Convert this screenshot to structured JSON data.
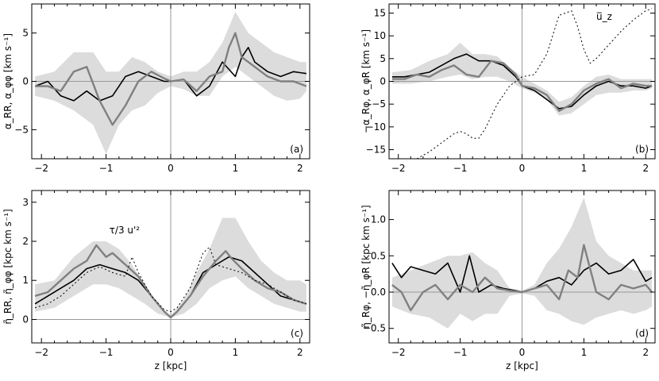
{
  "chart_data": [
    {
      "type": "line",
      "panel": "(a)",
      "ylabel": "α_RR, α_φφ [km s⁻¹]",
      "xlabel": "",
      "xlim": [
        -2.15,
        2.15
      ],
      "ylim": [
        -8,
        8
      ],
      "xticks": [
        -2,
        -1,
        0,
        1,
        2
      ],
      "yticks": [
        -5,
        0,
        5
      ],
      "yticks_labels": [
        "−5",
        "0",
        "5"
      ],
      "grid": false,
      "annotations": [],
      "band": {
        "x": [
          -2.1,
          -1.8,
          -1.5,
          -1.2,
          -1.0,
          -0.8,
          -0.6,
          -0.4,
          -0.2,
          0.0,
          0.2,
          0.4,
          0.6,
          0.8,
          1.0,
          1.2,
          1.4,
          1.6,
          1.8,
          2.0,
          2.1
        ],
        "lower": [
          -1.5,
          -2.0,
          -3.0,
          -4.5,
          -7.5,
          -4.5,
          -3.0,
          -2.5,
          -1.2,
          -0.5,
          -0.8,
          -1.5,
          -1.5,
          0.5,
          1.5,
          0.5,
          -0.5,
          -1.5,
          -2.0,
          -1.8,
          -1.0
        ],
        "upper": [
          0.5,
          1.0,
          3.0,
          3.0,
          1.0,
          1.0,
          2.5,
          2.0,
          1.0,
          0.5,
          1.0,
          1.0,
          2.0,
          4.0,
          7.2,
          5.0,
          4.0,
          3.0,
          2.5,
          2.0,
          2.0
        ]
      },
      "series": [
        {
          "name": "α_RR",
          "color": "#000000",
          "x": [
            -2.1,
            -1.9,
            -1.7,
            -1.5,
            -1.3,
            -1.1,
            -0.9,
            -0.7,
            -0.5,
            -0.3,
            -0.1,
            0.0,
            0.2,
            0.4,
            0.6,
            0.8,
            1.0,
            1.1,
            1.2,
            1.3,
            1.5,
            1.7,
            1.9,
            2.1
          ],
          "y": [
            -0.5,
            0.0,
            -1.5,
            -2.0,
            -1.0,
            -2.0,
            -1.5,
            0.5,
            1.0,
            0.5,
            0.0,
            0.0,
            0.2,
            -1.5,
            -0.5,
            2.0,
            0.5,
            2.5,
            3.5,
            2.0,
            1.0,
            0.5,
            1.0,
            0.8
          ]
        },
        {
          "name": "α_φφ",
          "color": "#808080",
          "x": [
            -2.1,
            -1.9,
            -1.7,
            -1.5,
            -1.3,
            -1.1,
            -0.9,
            -0.7,
            -0.5,
            -0.3,
            -0.1,
            0.0,
            0.2,
            0.4,
            0.6,
            0.8,
            0.9,
            1.0,
            1.1,
            1.3,
            1.5,
            1.7,
            1.9,
            2.1
          ],
          "y": [
            -0.5,
            -0.5,
            -1.0,
            1.0,
            1.5,
            -2.0,
            -4.5,
            -2.5,
            0.0,
            1.0,
            0.3,
            0.0,
            0.2,
            -1.0,
            0.5,
            1.0,
            3.5,
            5.0,
            2.5,
            1.5,
            0.5,
            0.0,
            0.0,
            -0.5
          ]
        }
      ]
    },
    {
      "type": "line",
      "panel": "(b)",
      "ylabel": "−α_Rφ, α_φR [km s⁻¹]",
      "xlabel": "",
      "xlim": [
        -2.15,
        2.15
      ],
      "ylim": [
        -17,
        17
      ],
      "xticks": [
        -2,
        -1,
        0,
        1,
        2
      ],
      "yticks": [
        -15,
        -10,
        -5,
        0,
        5,
        10,
        15
      ],
      "yticks_labels": [
        "−15",
        "−10",
        "−5",
        "0",
        "5",
        "10",
        "15"
      ],
      "grid": false,
      "annotations": [
        "u̅_z"
      ],
      "band": {
        "x": [
          -2.1,
          -1.8,
          -1.5,
          -1.2,
          -1.0,
          -0.8,
          -0.6,
          -0.4,
          -0.2,
          0.0,
          0.2,
          0.4,
          0.6,
          0.8,
          1.0,
          1.2,
          1.4,
          1.6,
          1.8,
          2.0,
          2.1
        ],
        "lower": [
          -0.5,
          -0.5,
          0.0,
          1.0,
          1.5,
          0.5,
          1.0,
          1.0,
          0.0,
          -1.5,
          -2.5,
          -4.0,
          -7.5,
          -7.0,
          -5.0,
          -3.0,
          -2.5,
          -2.5,
          -2.0,
          -2.0,
          -1.5
        ],
        "upper": [
          2.0,
          2.5,
          4.5,
          6.0,
          8.5,
          6.0,
          6.0,
          5.5,
          3.0,
          1.0,
          -0.5,
          -2.0,
          -4.5,
          -3.5,
          -1.0,
          1.0,
          1.5,
          0.5,
          0.5,
          0.5,
          0.5
        ]
      },
      "series": [
        {
          "name": "−α_Rφ",
          "color": "#000000",
          "x": [
            -2.1,
            -1.9,
            -1.7,
            -1.5,
            -1.3,
            -1.1,
            -0.9,
            -0.7,
            -0.5,
            -0.3,
            -0.1,
            0.0,
            0.2,
            0.4,
            0.6,
            0.8,
            1.0,
            1.2,
            1.4,
            1.6,
            1.8,
            2.0,
            2.1
          ],
          "y": [
            1.0,
            1.0,
            1.5,
            2.0,
            3.5,
            5.0,
            6.0,
            4.5,
            4.5,
            3.5,
            1.0,
            -1.0,
            -2.0,
            -4.0,
            -6.0,
            -5.5,
            -3.0,
            -1.0,
            0.0,
            -1.0,
            -1.0,
            -1.5,
            -1.0
          ]
        },
        {
          "name": "α_φR",
          "color": "#808080",
          "x": [
            -2.1,
            -1.9,
            -1.7,
            -1.5,
            -1.3,
            -1.1,
            -0.9,
            -0.7,
            -0.5,
            -0.3,
            -0.1,
            0.0,
            0.2,
            0.4,
            0.6,
            0.8,
            1.0,
            1.2,
            1.4,
            1.6,
            1.8,
            2.0,
            2.1
          ],
          "y": [
            0.5,
            0.5,
            1.5,
            1.0,
            2.5,
            3.5,
            1.5,
            1.0,
            4.5,
            4.0,
            1.5,
            -1.0,
            -1.5,
            -3.0,
            -6.5,
            -5.0,
            -2.0,
            -0.5,
            0.5,
            -1.5,
            -0.5,
            -1.0,
            -1.0
          ]
        },
        {
          "name": "u̅_z",
          "color": "#000000",
          "dashed": true,
          "x": [
            -1.7,
            -1.5,
            -1.3,
            -1.1,
            -1.0,
            -0.9,
            -0.8,
            -0.7,
            -0.6,
            -0.4,
            -0.2,
            0.0,
            0.2,
            0.4,
            0.6,
            0.8,
            0.9,
            1.0,
            1.1,
            1.2,
            1.4,
            1.6,
            1.8,
            2.0,
            2.1
          ],
          "y": [
            -17.0,
            -15.5,
            -13.5,
            -11.5,
            -11.0,
            -11.5,
            -12.5,
            -12.5,
            -10.5,
            -5.0,
            -1.0,
            1.0,
            1.5,
            6.0,
            14.5,
            15.5,
            12.0,
            7.0,
            4.0,
            5.0,
            8.0,
            11.0,
            13.5,
            15.5,
            16.0
          ]
        }
      ]
    },
    {
      "type": "line",
      "panel": "(c)",
      "ylabel": "η̃_RR, η̃_φφ [kpc km s⁻¹]",
      "xlabel": "z [kpc]",
      "xlim": [
        -2.15,
        2.15
      ],
      "ylim": [
        -0.6,
        3.3
      ],
      "xticks": [
        -2,
        -1,
        0,
        1,
        2
      ],
      "yticks": [
        0,
        1,
        2,
        3
      ],
      "yticks_labels": [
        "0",
        "1",
        "2",
        "3"
      ],
      "grid": false,
      "annotations": [
        "τ/3 u'²"
      ],
      "band": {
        "x": [
          -2.1,
          -1.8,
          -1.5,
          -1.2,
          -1.0,
          -0.8,
          -0.6,
          -0.4,
          -0.2,
          0.0,
          0.2,
          0.4,
          0.6,
          0.8,
          1.0,
          1.2,
          1.4,
          1.6,
          1.8,
          2.0,
          2.1
        ],
        "lower": [
          0.2,
          0.3,
          0.6,
          0.9,
          0.9,
          0.8,
          0.6,
          0.4,
          0.15,
          0.05,
          0.15,
          0.4,
          0.8,
          1.0,
          1.1,
          0.8,
          0.6,
          0.4,
          0.3,
          0.2,
          0.2
        ],
        "upper": [
          0.9,
          1.0,
          1.6,
          2.0,
          2.0,
          1.8,
          1.4,
          0.9,
          0.4,
          0.1,
          0.5,
          1.2,
          1.8,
          2.6,
          2.6,
          2.0,
          1.5,
          1.2,
          1.0,
          1.0,
          0.9
        ]
      },
      "series": [
        {
          "name": "η̃_RR",
          "color": "#000000",
          "x": [
            -2.1,
            -1.9,
            -1.7,
            -1.5,
            -1.3,
            -1.1,
            -0.9,
            -0.7,
            -0.5,
            -0.3,
            -0.1,
            0.0,
            0.1,
            0.3,
            0.5,
            0.7,
            0.9,
            1.1,
            1.3,
            1.5,
            1.7,
            1.9,
            2.1
          ],
          "y": [
            0.4,
            0.6,
            0.8,
            1.0,
            1.3,
            1.4,
            1.3,
            1.2,
            1.0,
            0.6,
            0.2,
            0.05,
            0.2,
            0.6,
            1.2,
            1.4,
            1.6,
            1.5,
            1.2,
            0.9,
            0.6,
            0.5,
            0.4
          ]
        },
        {
          "name": "η̃_φφ",
          "color": "#808080",
          "x": [
            -2.1,
            -1.9,
            -1.7,
            -1.5,
            -1.3,
            -1.15,
            -1.0,
            -0.9,
            -0.7,
            -0.5,
            -0.3,
            -0.1,
            0.0,
            0.1,
            0.3,
            0.5,
            0.7,
            0.85,
            0.95,
            1.1,
            1.3,
            1.5,
            1.7,
            1.9,
            2.1
          ],
          "y": [
            0.6,
            0.7,
            1.0,
            1.3,
            1.5,
            1.9,
            1.6,
            1.7,
            1.4,
            1.1,
            0.6,
            0.2,
            0.05,
            0.2,
            0.6,
            1.1,
            1.5,
            1.75,
            1.55,
            1.3,
            1.0,
            0.8,
            0.7,
            0.5,
            0.4
          ]
        },
        {
          "name": "τ/3 u'²",
          "color": "#000000",
          "dashed": true,
          "x": [
            -2.1,
            -1.9,
            -1.7,
            -1.5,
            -1.3,
            -1.1,
            -0.9,
            -0.7,
            -0.6,
            -0.5,
            -0.3,
            -0.1,
            0.0,
            0.1,
            0.3,
            0.5,
            0.6,
            0.7,
            0.9,
            1.1,
            1.3,
            1.5,
            1.7,
            1.9,
            2.1
          ],
          "y": [
            0.3,
            0.4,
            0.6,
            0.9,
            1.2,
            1.35,
            1.2,
            1.1,
            1.6,
            1.2,
            0.6,
            0.25,
            0.2,
            0.3,
            0.8,
            1.7,
            1.85,
            1.4,
            1.3,
            1.2,
            1.0,
            0.9,
            0.7,
            0.5,
            0.4
          ]
        }
      ]
    },
    {
      "type": "line",
      "panel": "(d)",
      "ylabel": "η̃_Rφ, −η̃_φR [kpc km s⁻¹]",
      "xlabel": "z [kpc]",
      "xlim": [
        -2.15,
        2.15
      ],
      "ylim": [
        -0.7,
        1.4
      ],
      "xticks": [
        -2,
        -1,
        0,
        1,
        2
      ],
      "yticks": [
        -0.5,
        0.0,
        0.5,
        1.0
      ],
      "yticks_labels": [
        "−0.5",
        "0.0",
        "0.5",
        "1.0"
      ],
      "grid": false,
      "annotations": [],
      "band": {
        "x": [
          -2.1,
          -1.8,
          -1.5,
          -1.2,
          -1.0,
          -0.8,
          -0.6,
          -0.4,
          -0.2,
          0.0,
          0.2,
          0.4,
          0.6,
          0.8,
          1.0,
          1.2,
          1.4,
          1.6,
          1.8,
          2.0,
          2.1
        ],
        "lower": [
          -0.2,
          -0.3,
          -0.35,
          -0.5,
          -0.3,
          -0.4,
          -0.3,
          -0.3,
          -0.05,
          -0.02,
          -0.05,
          -0.25,
          -0.3,
          -0.4,
          -0.45,
          -0.35,
          -0.3,
          -0.25,
          -0.3,
          -0.25,
          -0.2
        ],
        "upper": [
          0.2,
          0.3,
          0.4,
          0.5,
          0.5,
          0.55,
          0.4,
          0.3,
          0.05,
          0.02,
          0.1,
          0.4,
          0.6,
          0.9,
          1.3,
          0.7,
          0.5,
          0.4,
          0.3,
          0.3,
          0.3
        ]
      },
      "series": [
        {
          "name": "η̃_Rφ",
          "color": "#000000",
          "x": [
            -2.1,
            -1.95,
            -1.8,
            -1.6,
            -1.4,
            -1.2,
            -1.0,
            -0.85,
            -0.7,
            -0.5,
            -0.3,
            -0.1,
            0.0,
            0.2,
            0.4,
            0.6,
            0.8,
            1.0,
            1.2,
            1.4,
            1.6,
            1.8,
            2.0,
            2.1
          ],
          "y": [
            0.4,
            0.2,
            0.35,
            0.3,
            0.25,
            0.4,
            0.0,
            0.5,
            0.0,
            0.1,
            0.05,
            0.02,
            0.0,
            0.05,
            0.15,
            0.2,
            0.1,
            0.3,
            0.4,
            0.25,
            0.3,
            0.45,
            0.15,
            0.2
          ]
        },
        {
          "name": "−η̃_φR",
          "color": "#808080",
          "x": [
            -2.1,
            -1.95,
            -1.8,
            -1.6,
            -1.4,
            -1.2,
            -1.0,
            -0.8,
            -0.6,
            -0.4,
            -0.2,
            0.0,
            0.2,
            0.4,
            0.6,
            0.75,
            0.9,
            1.0,
            1.2,
            1.4,
            1.6,
            1.8,
            2.0,
            2.1
          ],
          "y": [
            0.1,
            0.0,
            -0.25,
            0.0,
            0.1,
            -0.1,
            0.1,
            0.0,
            0.2,
            0.05,
            0.02,
            0.0,
            0.05,
            0.1,
            -0.1,
            0.3,
            0.2,
            0.65,
            0.0,
            -0.1,
            0.1,
            0.05,
            0.1,
            0.0
          ]
        }
      ]
    }
  ],
  "tick_labels_x": [
    "−2",
    "−1",
    "0",
    "1",
    "2"
  ],
  "panel_a_ylabel": "α_RR, α_φφ  [km s⁻¹]",
  "panel_b_ylabel": "−α_Rφ, α_φR  [km s⁻¹]",
  "panel_c_ylabel": "η̃_RR, η̃_φφ  [kpc km s⁻¹]",
  "panel_d_ylabel": "η̃_Rφ, −η̃_φR  [kpc km s⁻¹]",
  "xlabel_bottom": "z  [kpc]",
  "annotation_uz": "u̅_z",
  "annotation_tau": "τ/3 u'²",
  "colors": {
    "band": "#dcdcdc",
    "black_line": "#000000",
    "gray_line": "#808080",
    "zero_line": "#999999"
  }
}
